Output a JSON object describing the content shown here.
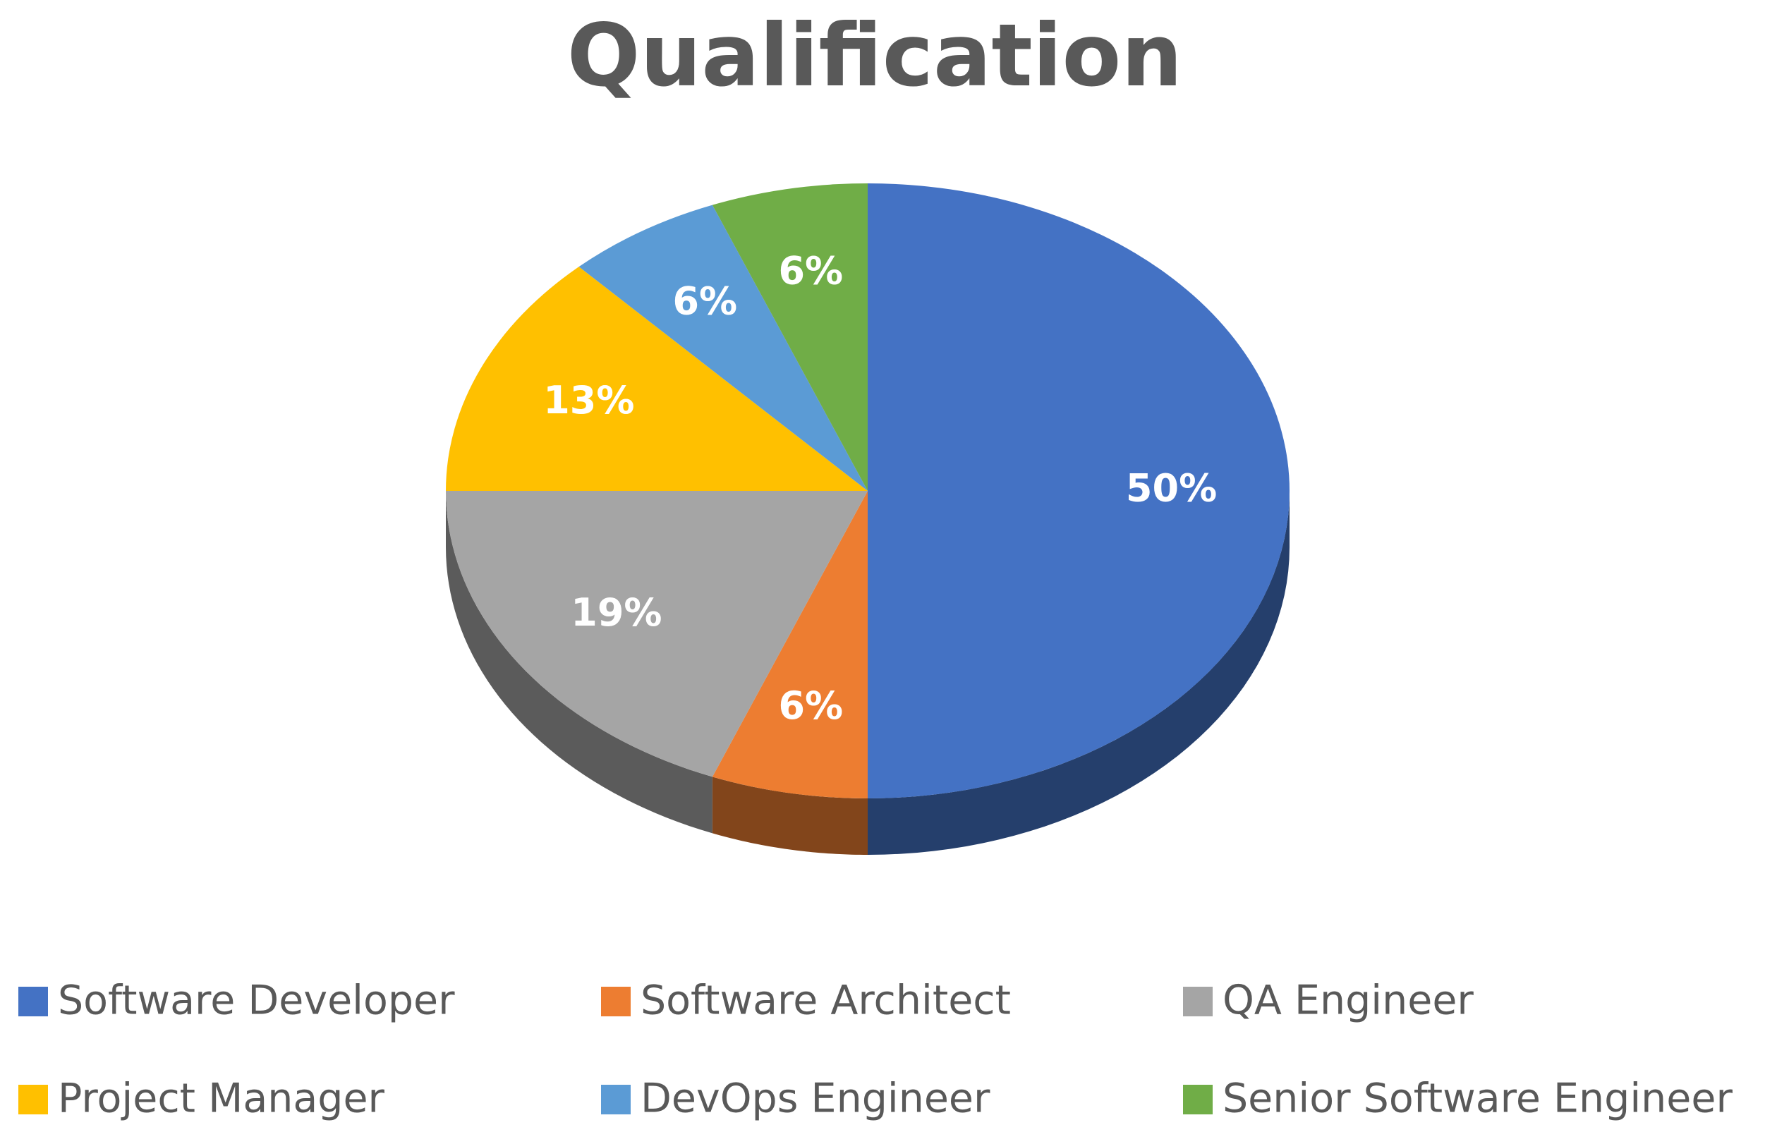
{
  "chart_data": {
    "type": "pie",
    "title": "Qualification",
    "categories": [
      "Software Developer",
      "Software Architect",
      "QA Engineer",
      "Project Manager",
      "DevOps Engineer",
      "Senior Software Engineer"
    ],
    "values": [
      50,
      6,
      19,
      13,
      6,
      6
    ],
    "value_labels": [
      "50%",
      "6%",
      "19%",
      "13%",
      "6%",
      "6%"
    ],
    "colors": [
      "#4472c4",
      "#ed7d31",
      "#a5a5a5",
      "#ffc000",
      "#5b9bd5",
      "#70ad47"
    ],
    "legend": "bottom"
  }
}
